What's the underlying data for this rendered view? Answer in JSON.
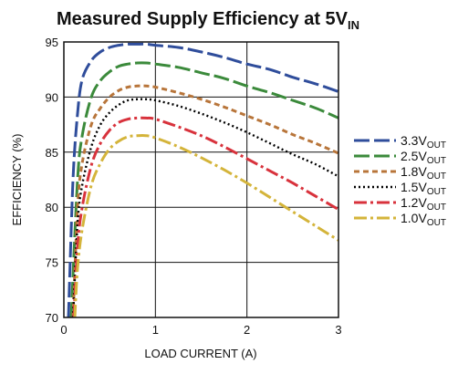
{
  "chart_data": {
    "type": "line",
    "title": {
      "main": "Measured Supply Efficiency at 5V",
      "sub": "IN"
    },
    "xlabel": "LOAD CURRENT (A)",
    "ylabel": "EFFICIENCY (%)",
    "xlim": [
      0,
      3
    ],
    "ylim": [
      70,
      95
    ],
    "xticks": [
      0,
      1,
      2,
      3
    ],
    "yticks": [
      70,
      75,
      80,
      85,
      90,
      95
    ],
    "grid": true,
    "legend_position": "right",
    "series": [
      {
        "name": "3.3V",
        "name_sub": "OUT",
        "color": "#2f4d9b",
        "dash": "dashed",
        "x": [
          0.05,
          0.1,
          0.15,
          0.2,
          0.3,
          0.4,
          0.5,
          0.6,
          0.7,
          0.8,
          0.9,
          1.0,
          1.25,
          1.5,
          1.75,
          2.0,
          2.25,
          2.5,
          2.75,
          3.0
        ],
        "y": [
          70.0,
          82.5,
          88.5,
          91.6,
          93.3,
          94.1,
          94.5,
          94.7,
          94.8,
          94.8,
          94.8,
          94.7,
          94.5,
          94.1,
          93.6,
          93.0,
          92.5,
          91.8,
          91.2,
          90.5
        ]
      },
      {
        "name": "2.5V",
        "name_sub": "OUT",
        "color": "#3b8a3b",
        "dash": "dashed",
        "x": [
          0.08,
          0.15,
          0.2,
          0.3,
          0.4,
          0.5,
          0.6,
          0.7,
          0.8,
          0.9,
          1.0,
          1.25,
          1.5,
          1.75,
          2.0,
          2.25,
          2.5,
          2.75,
          3.0
        ],
        "y": [
          70.0,
          82.5,
          86.5,
          90.0,
          91.5,
          92.3,
          92.8,
          93.0,
          93.1,
          93.1,
          93.0,
          92.7,
          92.2,
          91.7,
          91.0,
          90.4,
          89.7,
          89.0,
          88.1
        ]
      },
      {
        "name": "1.8V",
        "name_sub": "OUT",
        "color": "#b8753a",
        "dash": "short-dashed",
        "x": [
          0.1,
          0.15,
          0.2,
          0.3,
          0.4,
          0.5,
          0.6,
          0.7,
          0.8,
          0.9,
          1.0,
          1.25,
          1.5,
          1.75,
          2.0,
          2.25,
          2.5,
          2.75,
          3.0
        ],
        "y": [
          70.0,
          80.0,
          84.0,
          87.5,
          89.0,
          90.0,
          90.6,
          90.9,
          91.0,
          91.0,
          90.9,
          90.4,
          89.8,
          89.1,
          88.3,
          87.5,
          86.6,
          85.8,
          84.9
        ]
      },
      {
        "name": "1.5V",
        "name_sub": "OUT",
        "color": "#000000",
        "dash": "dotted",
        "x": [
          0.1,
          0.15,
          0.2,
          0.3,
          0.4,
          0.5,
          0.6,
          0.7,
          0.8,
          0.9,
          1.0,
          1.25,
          1.5,
          1.75,
          2.0,
          2.25,
          2.5,
          2.75,
          3.0
        ],
        "y": [
          70.0,
          78.5,
          82.0,
          85.5,
          87.5,
          88.6,
          89.3,
          89.7,
          89.8,
          89.8,
          89.7,
          89.2,
          88.5,
          87.7,
          86.8,
          85.8,
          84.8,
          83.9,
          82.8
        ]
      },
      {
        "name": "1.2V",
        "name_sub": "OUT",
        "color": "#d8323c",
        "dash": "dash-dot",
        "x": [
          0.11,
          0.15,
          0.2,
          0.3,
          0.4,
          0.5,
          0.6,
          0.7,
          0.8,
          0.9,
          1.0,
          1.25,
          1.5,
          1.75,
          2.0,
          2.25,
          2.5,
          2.75,
          3.0
        ],
        "y": [
          70.0,
          76.5,
          80.0,
          83.8,
          85.8,
          87.0,
          87.7,
          88.0,
          88.1,
          88.1,
          88.0,
          87.3,
          86.5,
          85.5,
          84.4,
          83.3,
          82.2,
          81.0,
          79.8
        ]
      },
      {
        "name": "1.0V",
        "name_sub": "OUT",
        "color": "#d4b43a",
        "dash": "dash-dot",
        "x": [
          0.12,
          0.15,
          0.2,
          0.3,
          0.4,
          0.5,
          0.6,
          0.7,
          0.8,
          0.9,
          1.0,
          1.25,
          1.5,
          1.75,
          2.0,
          2.25,
          2.5,
          2.75,
          3.0
        ],
        "y": [
          70.0,
          74.5,
          78.0,
          82.0,
          84.0,
          85.3,
          86.0,
          86.4,
          86.5,
          86.5,
          86.3,
          85.5,
          84.5,
          83.4,
          82.2,
          80.9,
          79.6,
          78.3,
          77.0
        ]
      }
    ]
  }
}
